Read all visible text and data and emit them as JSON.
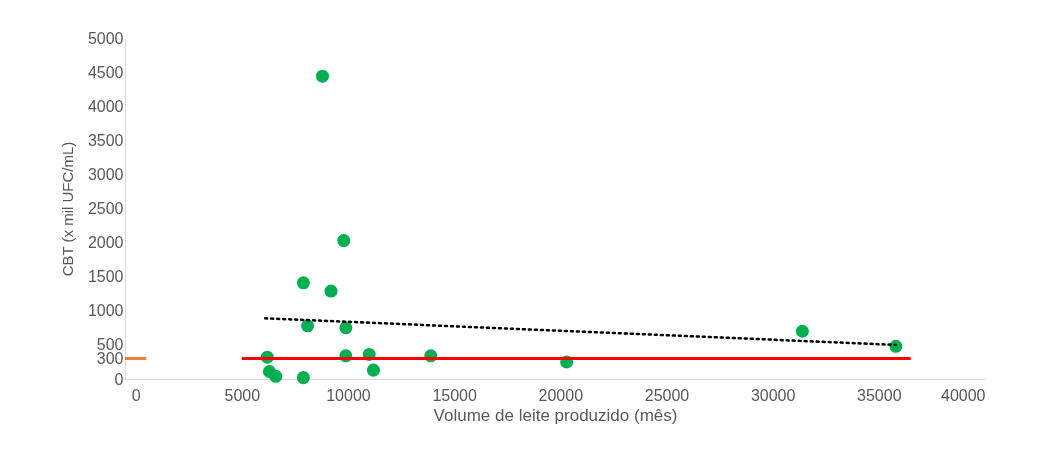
{
  "chart_data": {
    "type": "scatter",
    "xlabel": "Volume de leite produzido (mês)",
    "ylabel": "CBT (x mil UFC/mL)",
    "xlim": [
      -500,
      40000
    ],
    "xticks": [
      0,
      5000,
      10000,
      15000,
      20000,
      25000,
      30000,
      35000,
      40000
    ],
    "ylim": [
      0,
      5000
    ],
    "yticks": [
      0,
      300,
      500,
      1000,
      1500,
      2000,
      2500,
      3000,
      3500,
      4000,
      4500,
      5000
    ],
    "grid": false,
    "legend": false,
    "series": [
      {
        "color": "#00b050",
        "marker": "circle",
        "x": [
          8800,
          9800,
          7900,
          9200,
          8100,
          9900,
          6200,
          9900,
          11000,
          13900,
          6300,
          6600,
          7900,
          11200,
          20300,
          31400,
          35800
        ],
        "values": [
          4440,
          2030,
          1410,
          1290,
          780,
          750,
          320,
          340,
          360,
          340,
          110,
          40,
          20,
          130,
          250,
          700,
          480
        ]
      },
      {
        "type": "line",
        "color": "#000000",
        "line_style": "dotted",
        "marker": "none",
        "x": [
          6100,
          35800
        ],
        "values": [
          890,
          500
        ]
      },
      {
        "type": "line",
        "color": "#ff0000",
        "line_style": "solid",
        "marker": "none",
        "x": [
          5000,
          36500
        ],
        "values": [
          300,
          300
        ]
      },
      {
        "type": "line",
        "color": "#ed7d31",
        "line_style": "solid",
        "marker": "none",
        "x": [
          -500,
          500
        ],
        "values": [
          300,
          300
        ]
      }
    ]
  }
}
